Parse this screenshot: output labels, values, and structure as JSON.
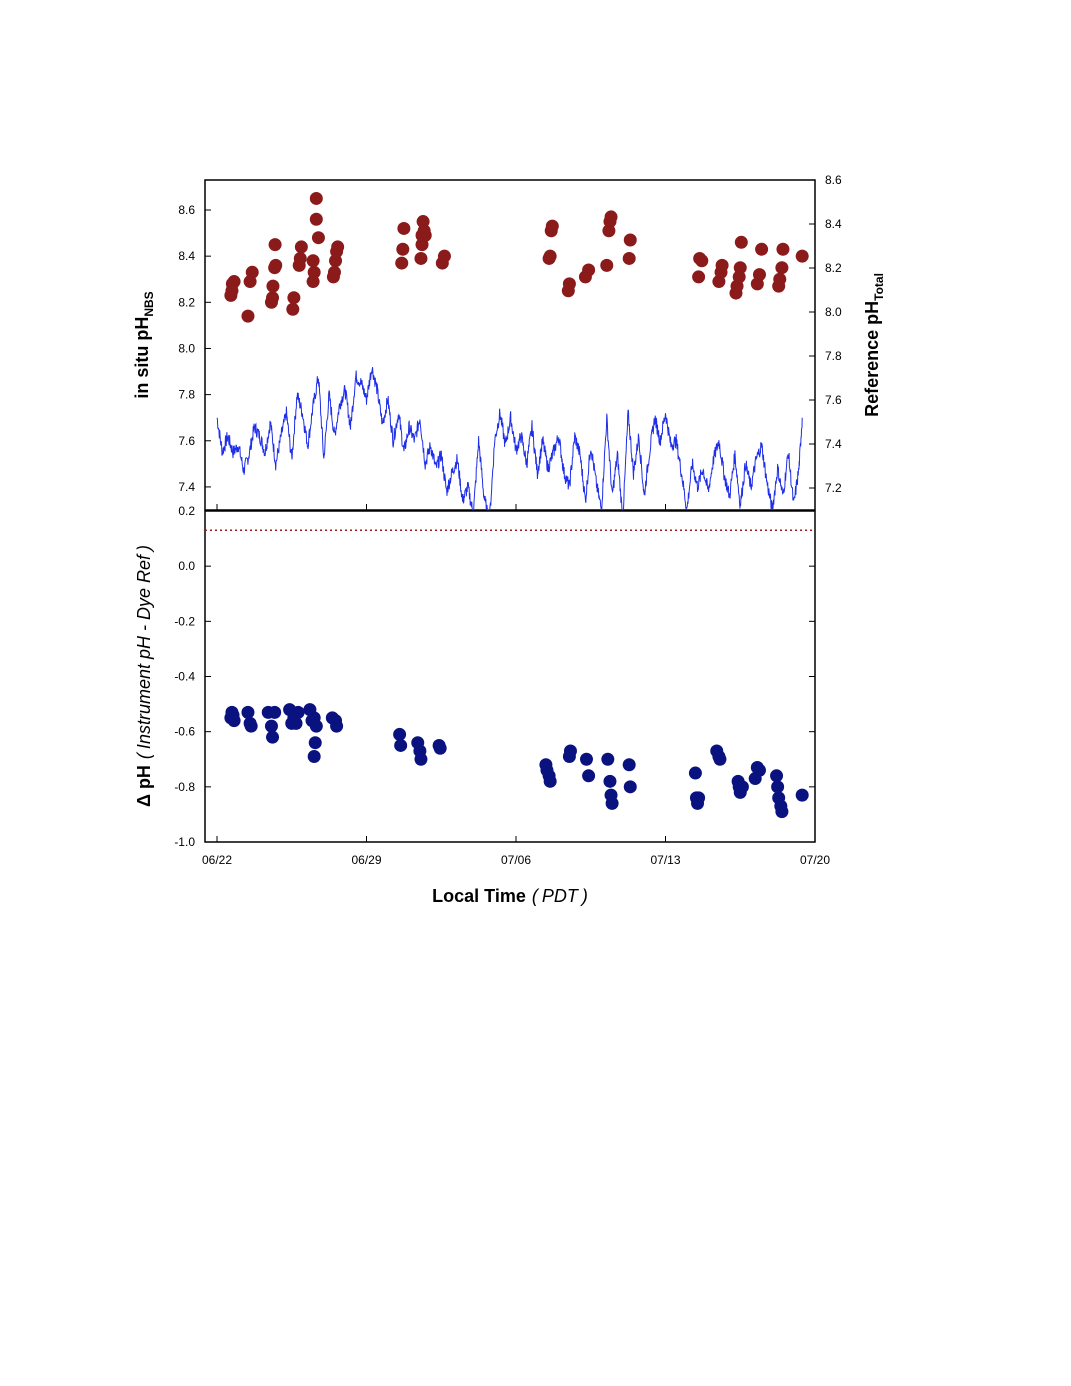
{
  "chart_data": [
    {
      "type": "scatter+line",
      "panel": "top",
      "xlabel_ticks": [
        "06/22",
        "06/29",
        "07/06",
        "07/13",
        "07/20"
      ],
      "x_range": [
        "06/21 12:00",
        "07/20 00:00"
      ],
      "ylabel_left": {
        "main": "in situ pH",
        "sub": "NBS"
      },
      "ylabel_right": {
        "main": "Reference pH",
        "sub": "Total"
      },
      "ylim_left": [
        7.3,
        8.73
      ],
      "ylim_right": [
        7.1,
        8.6
      ],
      "yticks_left": [
        "7.4",
        "7.6",
        "7.8",
        "8.0",
        "8.2",
        "8.4",
        "8.6"
      ],
      "yticks_right": [
        "7.2",
        "7.4",
        "7.6",
        "7.8",
        "8.0",
        "8.2",
        "8.4",
        "8.6"
      ],
      "colors": {
        "scatter": "#8b1a1a",
        "line": "#1f2ee8"
      },
      "scatter_series": {
        "axis": "left",
        "points": [
          [
            0.65,
            8.23
          ],
          [
            0.72,
            8.28
          ],
          [
            0.8,
            8.29
          ],
          [
            0.7,
            8.25
          ],
          [
            1.45,
            8.14
          ],
          [
            1.55,
            8.29
          ],
          [
            1.65,
            8.33
          ],
          [
            2.55,
            8.2
          ],
          [
            2.6,
            8.22
          ],
          [
            2.62,
            8.27
          ],
          [
            2.7,
            8.35
          ],
          [
            2.75,
            8.36
          ],
          [
            2.72,
            8.45
          ],
          [
            3.55,
            8.17
          ],
          [
            3.6,
            8.22
          ],
          [
            3.85,
            8.36
          ],
          [
            3.9,
            8.39
          ],
          [
            3.95,
            8.44
          ],
          [
            4.5,
            8.29
          ],
          [
            4.55,
            8.33
          ],
          [
            4.5,
            8.38
          ],
          [
            4.65,
            8.56
          ],
          [
            4.65,
            8.65
          ],
          [
            4.75,
            8.48
          ],
          [
            5.45,
            8.31
          ],
          [
            5.5,
            8.33
          ],
          [
            5.55,
            8.38
          ],
          [
            5.6,
            8.42
          ],
          [
            5.65,
            8.44
          ],
          [
            8.65,
            8.37
          ],
          [
            8.7,
            8.43
          ],
          [
            8.75,
            8.52
          ],
          [
            9.55,
            8.39
          ],
          [
            9.6,
            8.45
          ],
          [
            9.6,
            8.49
          ],
          [
            9.65,
            8.55
          ],
          [
            9.7,
            8.51
          ],
          [
            9.75,
            8.49
          ],
          [
            10.55,
            8.37
          ],
          [
            10.65,
            8.4
          ],
          [
            15.55,
            8.39
          ],
          [
            15.6,
            8.4
          ],
          [
            15.65,
            8.51
          ],
          [
            15.7,
            8.53
          ],
          [
            16.45,
            8.25
          ],
          [
            16.5,
            8.28
          ],
          [
            17.25,
            8.31
          ],
          [
            17.4,
            8.34
          ],
          [
            18.25,
            8.36
          ],
          [
            18.35,
            8.51
          ],
          [
            18.4,
            8.55
          ],
          [
            18.45,
            8.57
          ],
          [
            19.3,
            8.39
          ],
          [
            19.35,
            8.47
          ],
          [
            22.55,
            8.31
          ],
          [
            22.6,
            8.39
          ],
          [
            22.7,
            8.38
          ],
          [
            23.5,
            8.29
          ],
          [
            23.6,
            8.33
          ],
          [
            23.65,
            8.36
          ],
          [
            24.3,
            8.24
          ],
          [
            24.35,
            8.27
          ],
          [
            24.45,
            8.31
          ],
          [
            24.5,
            8.35
          ],
          [
            24.55,
            8.46
          ],
          [
            25.3,
            8.28
          ],
          [
            25.4,
            8.32
          ],
          [
            25.5,
            8.43
          ],
          [
            26.3,
            8.27
          ],
          [
            26.35,
            8.3
          ],
          [
            26.45,
            8.35
          ],
          [
            26.5,
            8.43
          ],
          [
            27.4,
            8.4
          ]
        ]
      },
      "line_series": {
        "axis": "left",
        "points": [
          [
            0.0,
            7.7
          ],
          [
            0.25,
            7.55
          ],
          [
            0.5,
            7.62
          ],
          [
            0.75,
            7.55
          ],
          [
            1.0,
            7.58
          ],
          [
            1.25,
            7.47
          ],
          [
            1.5,
            7.54
          ],
          [
            1.75,
            7.66
          ],
          [
            2.0,
            7.62
          ],
          [
            2.25,
            7.55
          ],
          [
            2.5,
            7.68
          ],
          [
            2.75,
            7.5
          ],
          [
            3.0,
            7.62
          ],
          [
            3.25,
            7.72
          ],
          [
            3.5,
            7.52
          ],
          [
            3.75,
            7.8
          ],
          [
            4.0,
            7.72
          ],
          [
            4.25,
            7.58
          ],
          [
            4.5,
            7.75
          ],
          [
            4.75,
            7.88
          ],
          [
            5.0,
            7.52
          ],
          [
            5.25,
            7.8
          ],
          [
            5.5,
            7.62
          ],
          [
            5.75,
            7.76
          ],
          [
            6.0,
            7.82
          ],
          [
            6.25,
            7.66
          ],
          [
            6.5,
            7.88
          ],
          [
            6.75,
            7.85
          ],
          [
            7.0,
            7.78
          ],
          [
            7.25,
            7.92
          ],
          [
            7.5,
            7.82
          ],
          [
            7.75,
            7.67
          ],
          [
            8.0,
            7.78
          ],
          [
            8.25,
            7.6
          ],
          [
            8.5,
            7.72
          ],
          [
            8.75,
            7.55
          ],
          [
            9.0,
            7.66
          ],
          [
            9.25,
            7.6
          ],
          [
            9.5,
            7.7
          ],
          [
            9.75,
            7.5
          ],
          [
            10.0,
            7.58
          ],
          [
            10.25,
            7.48
          ],
          [
            10.5,
            7.54
          ],
          [
            10.75,
            7.38
          ],
          [
            11.0,
            7.46
          ],
          [
            11.25,
            7.52
          ],
          [
            11.5,
            7.34
          ],
          [
            11.75,
            7.4
          ],
          [
            12.0,
            7.28
          ],
          [
            12.25,
            7.6
          ],
          [
            12.5,
            7.36
          ],
          [
            12.75,
            7.24
          ],
          [
            13.0,
            7.6
          ],
          [
            13.25,
            7.72
          ],
          [
            13.5,
            7.58
          ],
          [
            13.75,
            7.7
          ],
          [
            14.0,
            7.56
          ],
          [
            14.25,
            7.62
          ],
          [
            14.5,
            7.5
          ],
          [
            14.75,
            7.66
          ],
          [
            15.0,
            7.46
          ],
          [
            15.25,
            7.6
          ],
          [
            15.5,
            7.48
          ],
          [
            15.75,
            7.55
          ],
          [
            16.0,
            7.62
          ],
          [
            16.25,
            7.46
          ],
          [
            16.5,
            7.4
          ],
          [
            16.75,
            7.62
          ],
          [
            17.0,
            7.54
          ],
          [
            17.25,
            7.34
          ],
          [
            17.5,
            7.58
          ],
          [
            17.75,
            7.42
          ],
          [
            18.0,
            7.3
          ],
          [
            18.25,
            7.7
          ],
          [
            18.5,
            7.36
          ],
          [
            18.75,
            7.54
          ],
          [
            19.0,
            7.26
          ],
          [
            19.25,
            7.72
          ],
          [
            19.5,
            7.46
          ],
          [
            19.75,
            7.62
          ],
          [
            20.0,
            7.36
          ],
          [
            20.25,
            7.55
          ],
          [
            20.5,
            7.7
          ],
          [
            20.75,
            7.6
          ],
          [
            21.0,
            7.72
          ],
          [
            21.25,
            7.58
          ],
          [
            21.5,
            7.6
          ],
          [
            21.75,
            7.46
          ],
          [
            22.0,
            7.3
          ],
          [
            22.25,
            7.5
          ],
          [
            22.5,
            7.4
          ],
          [
            22.75,
            7.48
          ],
          [
            23.0,
            7.38
          ],
          [
            23.25,
            7.52
          ],
          [
            23.5,
            7.6
          ],
          [
            23.75,
            7.45
          ],
          [
            24.0,
            7.36
          ],
          [
            24.25,
            7.54
          ],
          [
            24.5,
            7.32
          ],
          [
            24.75,
            7.5
          ],
          [
            25.0,
            7.4
          ],
          [
            25.25,
            7.52
          ],
          [
            25.5,
            7.58
          ],
          [
            25.75,
            7.42
          ],
          [
            26.0,
            7.3
          ],
          [
            26.25,
            7.48
          ],
          [
            26.5,
            7.36
          ],
          [
            26.75,
            7.55
          ],
          [
            27.0,
            7.32
          ],
          [
            27.25,
            7.48
          ],
          [
            27.4,
            7.7
          ]
        ]
      }
    },
    {
      "type": "scatter",
      "panel": "bottom",
      "xlabel": {
        "main": "Local Time",
        "italic": "PDT"
      },
      "ylabel": {
        "main": "Δ pH",
        "italic": "Instrument pH - Dye Ref"
      },
      "xlabel_ticks": [
        "06/22",
        "06/29",
        "07/06",
        "07/13",
        "07/20"
      ],
      "ylim": [
        -1.0,
        0.2
      ],
      "yticks": [
        "-1.0",
        "-0.8",
        "-0.6",
        "-0.4",
        "-0.2",
        "0.0",
        "0.2"
      ],
      "reference_line": 0.13,
      "colors": {
        "scatter": "#0a1280",
        "reference_line": "#9b1c1c"
      },
      "points": [
        [
          0.65,
          -0.55
        ],
        [
          0.7,
          -0.53
        ],
        [
          0.75,
          -0.54
        ],
        [
          0.8,
          -0.56
        ],
        [
          1.45,
          -0.53
        ],
        [
          1.55,
          -0.57
        ],
        [
          1.6,
          -0.58
        ],
        [
          2.4,
          -0.53
        ],
        [
          2.55,
          -0.58
        ],
        [
          2.6,
          -0.62
        ],
        [
          2.7,
          -0.53
        ],
        [
          3.4,
          -0.52
        ],
        [
          3.5,
          -0.57
        ],
        [
          3.6,
          -0.55
        ],
        [
          3.7,
          -0.57
        ],
        [
          3.8,
          -0.53
        ],
        [
          4.35,
          -0.52
        ],
        [
          4.45,
          -0.56
        ],
        [
          4.55,
          -0.55
        ],
        [
          4.6,
          -0.64
        ],
        [
          4.55,
          -0.69
        ],
        [
          4.65,
          -0.58
        ],
        [
          5.4,
          -0.55
        ],
        [
          5.55,
          -0.56
        ],
        [
          5.6,
          -0.58
        ],
        [
          8.55,
          -0.61
        ],
        [
          8.6,
          -0.65
        ],
        [
          9.4,
          -0.64
        ],
        [
          9.5,
          -0.67
        ],
        [
          9.55,
          -0.7
        ],
        [
          10.4,
          -0.65
        ],
        [
          10.45,
          -0.66
        ],
        [
          15.4,
          -0.72
        ],
        [
          15.45,
          -0.74
        ],
        [
          15.55,
          -0.76
        ],
        [
          15.6,
          -0.78
        ],
        [
          16.5,
          -0.69
        ],
        [
          16.55,
          -0.67
        ],
        [
          17.3,
          -0.7
        ],
        [
          17.4,
          -0.76
        ],
        [
          18.3,
          -0.7
        ],
        [
          18.4,
          -0.78
        ],
        [
          18.45,
          -0.83
        ],
        [
          18.5,
          -0.86
        ],
        [
          19.3,
          -0.72
        ],
        [
          19.35,
          -0.8
        ],
        [
          22.4,
          -0.75
        ],
        [
          22.45,
          -0.84
        ],
        [
          22.5,
          -0.86
        ],
        [
          22.55,
          -0.84
        ],
        [
          23.4,
          -0.67
        ],
        [
          23.5,
          -0.69
        ],
        [
          23.55,
          -0.7
        ],
        [
          24.4,
          -0.78
        ],
        [
          24.45,
          -0.8
        ],
        [
          24.5,
          -0.82
        ],
        [
          24.6,
          -0.8
        ],
        [
          25.2,
          -0.77
        ],
        [
          25.3,
          -0.73
        ],
        [
          25.4,
          -0.74
        ],
        [
          26.2,
          -0.76
        ],
        [
          26.25,
          -0.8
        ],
        [
          26.3,
          -0.84
        ],
        [
          26.4,
          -0.87
        ],
        [
          26.45,
          -0.89
        ],
        [
          27.4,
          -0.83
        ]
      ]
    }
  ]
}
